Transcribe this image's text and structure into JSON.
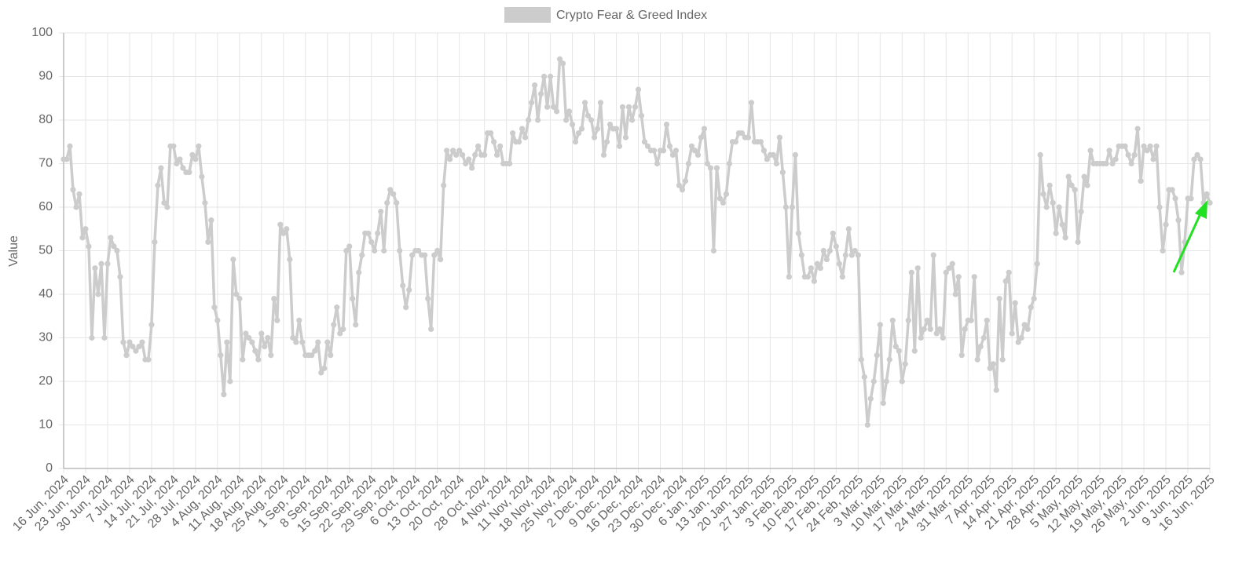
{
  "chart_data": {
    "type": "line",
    "y_label": "Value",
    "legend": "top",
    "grid": true,
    "ylim": [
      0,
      100
    ],
    "yticks": [
      0,
      10,
      20,
      30,
      40,
      50,
      60,
      70,
      80,
      90,
      100
    ],
    "categories": [
      "16 Jun, 2024",
      null,
      null,
      null,
      null,
      null,
      null,
      "23 Jun, 2024",
      null,
      null,
      null,
      null,
      null,
      null,
      "30 Jun, 2024",
      null,
      null,
      null,
      null,
      null,
      null,
      "7 Jul, 2024",
      null,
      null,
      null,
      null,
      null,
      null,
      "14 Jul, 2024",
      null,
      null,
      null,
      null,
      null,
      null,
      "21 Jul, 2024",
      null,
      null,
      null,
      null,
      null,
      null,
      "28 Jul, 2024",
      null,
      null,
      null,
      null,
      null,
      null,
      "4 Aug, 2024",
      null,
      null,
      null,
      null,
      null,
      null,
      "11 Aug, 2024",
      null,
      null,
      null,
      null,
      null,
      null,
      "18 Aug, 2024",
      null,
      null,
      null,
      null,
      null,
      null,
      "25 Aug, 2024",
      null,
      null,
      null,
      null,
      null,
      null,
      "1 Sep, 2024",
      null,
      null,
      null,
      null,
      null,
      null,
      "8 Sep, 2024",
      null,
      null,
      null,
      null,
      null,
      null,
      "15 Sep, 2024",
      null,
      null,
      null,
      null,
      null,
      null,
      "22 Sep, 2024",
      null,
      null,
      null,
      null,
      null,
      null,
      "29 Sep, 2024",
      null,
      null,
      null,
      null,
      null,
      null,
      "6 Oct, 2024",
      null,
      null,
      null,
      null,
      null,
      null,
      "13 Oct, 2024",
      null,
      null,
      null,
      null,
      null,
      null,
      "20 Oct, 2024",
      null,
      null,
      null,
      null,
      null,
      null,
      null,
      "28 Oct, 2024",
      null,
      null,
      null,
      null,
      null,
      null,
      "4 Nov, 2024",
      null,
      null,
      null,
      null,
      null,
      null,
      "11 Nov, 2024",
      null,
      null,
      null,
      null,
      null,
      null,
      "18 Nov, 2024",
      null,
      null,
      null,
      null,
      null,
      null,
      "25 Nov, 2024",
      null,
      null,
      null,
      null,
      null,
      null,
      "2 Dec, 2024",
      null,
      null,
      null,
      null,
      null,
      null,
      "9 Dec, 2024",
      null,
      null,
      null,
      null,
      null,
      null,
      "16 Dec, 2024",
      null,
      null,
      null,
      null,
      null,
      null,
      "23 Dec, 2024",
      null,
      null,
      null,
      null,
      null,
      null,
      "30 Dec, 2024",
      null,
      null,
      null,
      null,
      null,
      null,
      "6 Jan, 2025",
      null,
      null,
      null,
      null,
      null,
      null,
      "13 Jan, 2025",
      null,
      null,
      null,
      null,
      null,
      null,
      "20 Jan, 2025",
      null,
      null,
      null,
      null,
      null,
      null,
      "27 Jan, 2025",
      null,
      null,
      null,
      null,
      null,
      null,
      "3 Feb, 2025",
      null,
      null,
      null,
      null,
      null,
      null,
      "10 Feb, 2025",
      null,
      null,
      null,
      null,
      null,
      null,
      "17 Feb, 2025",
      null,
      null,
      null,
      null,
      null,
      null,
      "24 Feb, 2025",
      null,
      null,
      null,
      null,
      null,
      null,
      "3 Mar, 2025",
      null,
      null,
      null,
      null,
      null,
      null,
      "10 Mar, 2025",
      null,
      null,
      null,
      null,
      null,
      null,
      "17 Mar, 2025",
      null,
      null,
      null,
      null,
      null,
      null,
      "24 Mar, 2025",
      null,
      null,
      null,
      null,
      null,
      null,
      "31 Mar, 2025",
      null,
      null,
      null,
      null,
      null,
      null,
      "7 Apr, 2025",
      null,
      null,
      null,
      null,
      null,
      null,
      "14 Apr, 2025",
      null,
      null,
      null,
      null,
      null,
      null,
      "21 Apr, 2025",
      null,
      null,
      null,
      null,
      null,
      null,
      "28 Apr, 2025",
      null,
      null,
      null,
      null,
      null,
      null,
      "5 May, 2025",
      null,
      null,
      null,
      null,
      null,
      null,
      "12 May, 2025",
      null,
      null,
      null,
      null,
      null,
      null,
      "19 May, 2025",
      null,
      null,
      null,
      null,
      null,
      null,
      "26 May, 2025",
      null,
      null,
      null,
      null,
      null,
      null,
      "2 Jun, 2025",
      null,
      null,
      null,
      null,
      null,
      null,
      "9 Jun, 2025",
      null,
      null,
      null,
      null,
      null,
      null,
      "16 Jun, 2025"
    ],
    "series": [
      {
        "name": "Crypto Fear & Greed Index",
        "color": "#cccccc",
        "values": [
          71,
          71,
          74,
          64,
          60,
          63,
          53,
          55,
          51,
          30,
          46,
          40,
          47,
          30,
          47,
          53,
          51,
          50,
          44,
          29,
          26,
          29,
          28,
          27,
          28,
          29,
          25,
          25,
          33,
          52,
          65,
          69,
          61,
          60,
          74,
          74,
          70,
          71,
          69,
          68,
          68,
          72,
          71,
          74,
          67,
          61,
          52,
          57,
          37,
          34,
          26,
          17,
          29,
          20,
          48,
          40,
          39,
          25,
          31,
          30,
          29,
          27,
          25,
          31,
          28,
          30,
          26,
          39,
          34,
          56,
          54,
          55,
          48,
          30,
          29,
          34,
          29,
          26,
          26,
          26,
          27,
          29,
          22,
          23,
          29,
          26,
          33,
          37,
          31,
          32,
          50,
          51,
          39,
          33,
          45,
          49,
          54,
          54,
          52,
          50,
          54,
          59,
          50,
          61,
          64,
          63,
          61,
          50,
          42,
          37,
          41,
          49,
          50,
          50,
          49,
          49,
          39,
          32,
          49,
          50,
          48,
          65,
          73,
          71,
          73,
          72,
          73,
          72,
          70,
          71,
          69,
          72,
          74,
          72,
          72,
          77,
          77,
          75,
          72,
          74,
          70,
          70,
          70,
          77,
          75,
          75,
          78,
          76,
          80,
          84,
          88,
          80,
          86,
          90,
          83,
          90,
          83,
          82,
          94,
          93,
          80,
          82,
          79,
          75,
          77,
          78,
          84,
          81,
          80,
          76,
          78,
          84,
          72,
          75,
          79,
          78,
          78,
          74,
          83,
          76,
          83,
          80,
          83,
          87,
          81,
          75,
          74,
          73,
          73,
          70,
          73,
          73,
          79,
          74,
          72,
          73,
          65,
          64,
          66,
          70,
          74,
          73,
          72,
          76,
          78,
          70,
          69,
          50,
          69,
          62,
          61,
          63,
          70,
          75,
          75,
          77,
          77,
          76,
          76,
          84,
          75,
          75,
          75,
          73,
          71,
          72,
          72,
          70,
          76,
          68,
          60,
          44,
          60,
          72,
          54,
          49,
          44,
          44,
          46,
          43,
          47,
          46,
          50,
          48,
          50,
          54,
          51,
          47,
          44,
          49,
          55,
          49,
          50,
          49,
          25,
          21,
          10,
          16,
          20,
          26,
          33,
          15,
          20,
          25,
          34,
          28,
          27,
          20,
          24,
          34,
          45,
          27,
          46,
          30,
          32,
          34,
          32,
          49,
          31,
          32,
          30,
          45,
          46,
          47,
          40,
          44,
          26,
          32,
          34,
          34,
          44,
          25,
          28,
          30,
          34,
          23,
          24,
          18,
          39,
          25,
          43,
          45,
          31,
          38,
          29,
          30,
          33,
          32,
          37,
          39,
          47,
          72,
          63,
          60,
          65,
          61,
          54,
          60,
          56,
          53,
          67,
          65,
          64,
          52,
          59,
          67,
          65,
          73,
          70,
          70,
          70,
          70,
          70,
          73,
          70,
          71,
          74,
          74,
          74,
          72,
          70,
          72,
          78,
          66,
          74,
          73,
          74,
          71,
          74,
          60,
          50,
          56,
          64,
          64,
          62,
          57,
          45,
          52,
          62,
          62,
          71,
          72,
          71,
          61,
          63,
          61
        ]
      }
    ]
  }
}
